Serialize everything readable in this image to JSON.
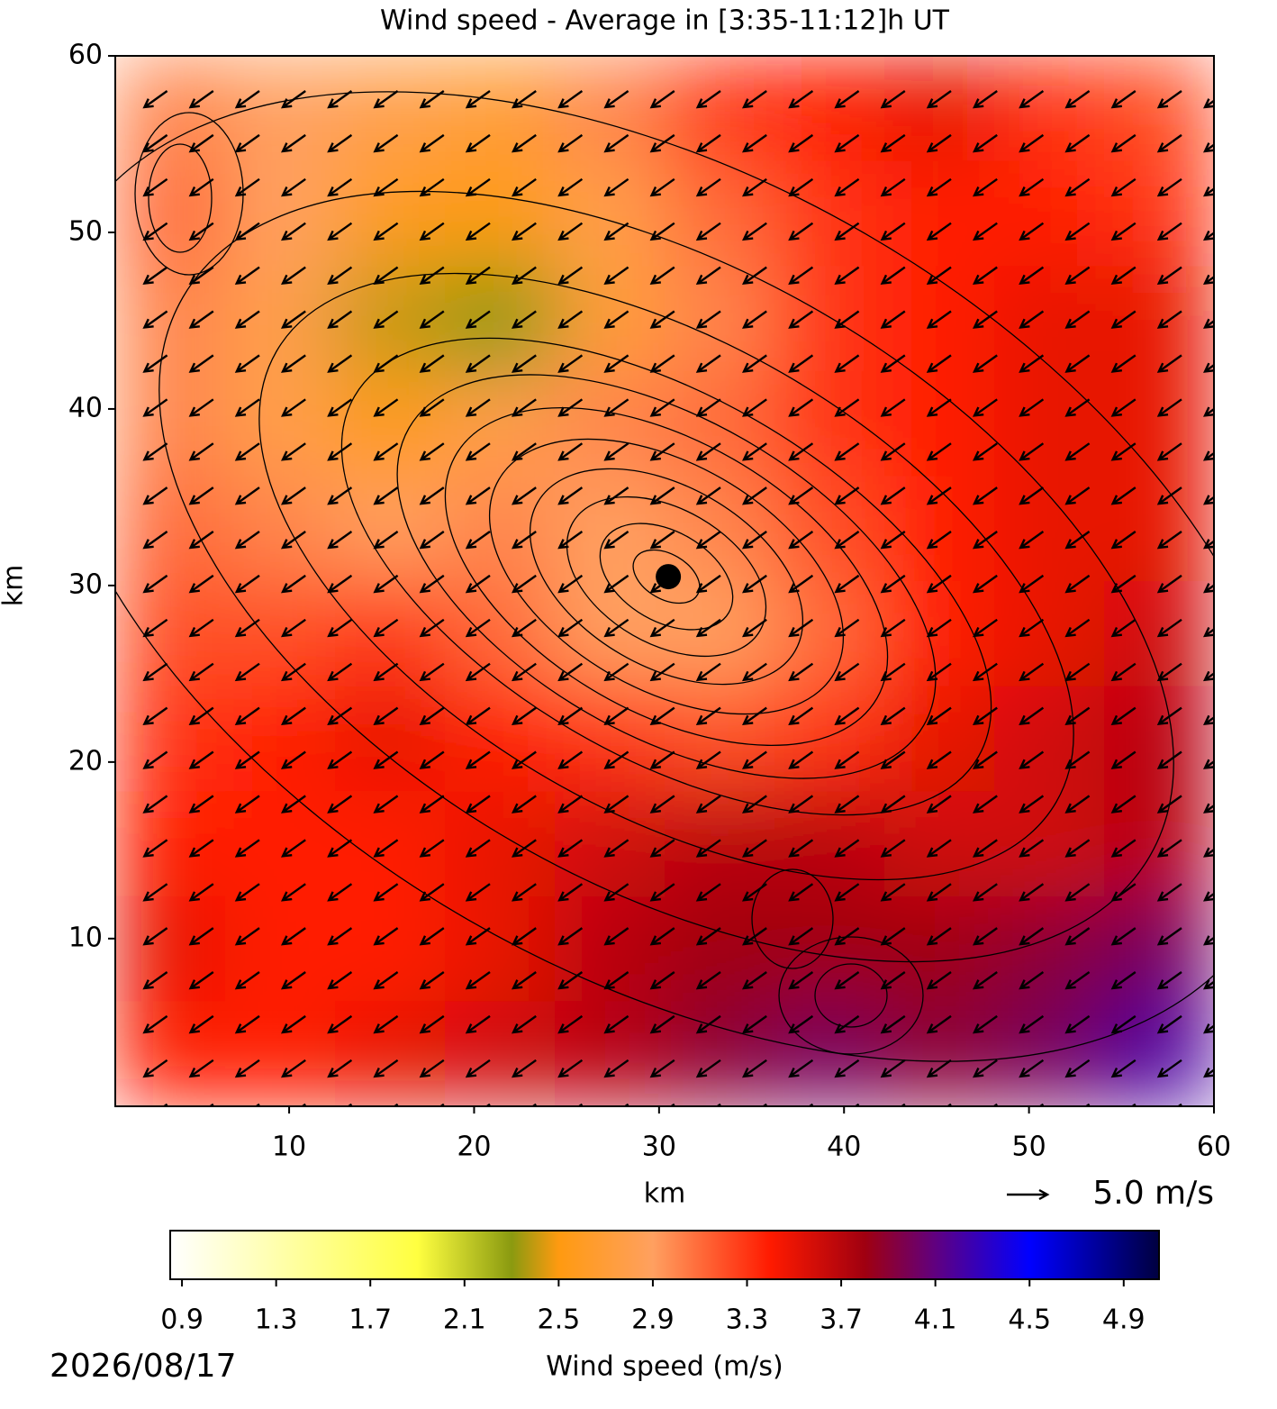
{
  "chart_data": {
    "type": "heatmap",
    "title": "Wind speed - Average in [3:35-11:12]h UT",
    "xlabel": "km",
    "ylabel": "km",
    "xlim": [
      0.6,
      60
    ],
    "ylim": [
      0.5,
      60
    ],
    "xticks": [
      10,
      20,
      30,
      40,
      50,
      60
    ],
    "yticks": [
      10,
      20,
      30,
      40,
      50,
      60
    ],
    "z": [
      [
        3.0,
        2.9,
        2.8,
        2.7,
        3.0,
        3.3,
        3.4,
        3.5,
        3.3,
        3.2
      ],
      [
        3.1,
        2.9,
        2.6,
        2.5,
        2.8,
        3.1,
        3.3,
        3.4,
        3.4,
        3.3
      ],
      [
        3.0,
        2.8,
        2.4,
        2.3,
        2.7,
        3.0,
        3.3,
        3.4,
        3.5,
        3.5
      ],
      [
        3.0,
        2.8,
        2.5,
        2.8,
        3.0,
        3.1,
        3.3,
        3.4,
        3.5,
        3.5
      ],
      [
        3.1,
        3.0,
        2.9,
        3.0,
        2.9,
        3.0,
        3.2,
        3.4,
        3.5,
        3.5
      ],
      [
        3.2,
        3.2,
        3.3,
        3.1,
        2.9,
        2.9,
        3.1,
        3.4,
        3.5,
        3.6
      ],
      [
        3.3,
        3.4,
        3.5,
        3.4,
        3.3,
        3.2,
        3.3,
        3.5,
        3.6,
        3.7
      ],
      [
        3.4,
        3.4,
        3.4,
        3.5,
        3.6,
        3.7,
        3.7,
        3.6,
        3.6,
        3.7
      ],
      [
        3.5,
        3.4,
        3.4,
        3.5,
        3.7,
        3.8,
        3.8,
        3.8,
        3.9,
        4.0
      ],
      [
        3.4,
        3.4,
        3.5,
        3.6,
        3.7,
        3.9,
        4.0,
        3.9,
        4.0,
        4.2
      ]
    ],
    "colorscale": [
      [
        0.85,
        "#ffffff"
      ],
      [
        1.9,
        "#ffff40"
      ],
      [
        2.3,
        "#8a9a10"
      ],
      [
        2.5,
        "#ff9a10"
      ],
      [
        2.9,
        "#ffa060"
      ],
      [
        3.4,
        "#ff1a00"
      ],
      [
        3.8,
        "#a00010"
      ],
      [
        4.1,
        "#600080"
      ],
      [
        4.5,
        "#0000ff"
      ],
      [
        5.05,
        "#000040"
      ]
    ],
    "clim": [
      0.85,
      5.05
    ],
    "cbar_ticks": [
      0.9,
      1.3,
      1.7,
      2.1,
      2.5,
      2.9,
      3.3,
      3.7,
      4.1,
      4.5,
      4.9
    ],
    "cbar_label": "Wind speed (m/s)",
    "quiver": {
      "u": -2.8,
      "v": -2.0
    },
    "quiver_key": {
      "value": 5.0,
      "label": "5.0 m/s"
    },
    "marker": [
      30.5,
      30.5
    ],
    "date": "2026/08/17"
  }
}
